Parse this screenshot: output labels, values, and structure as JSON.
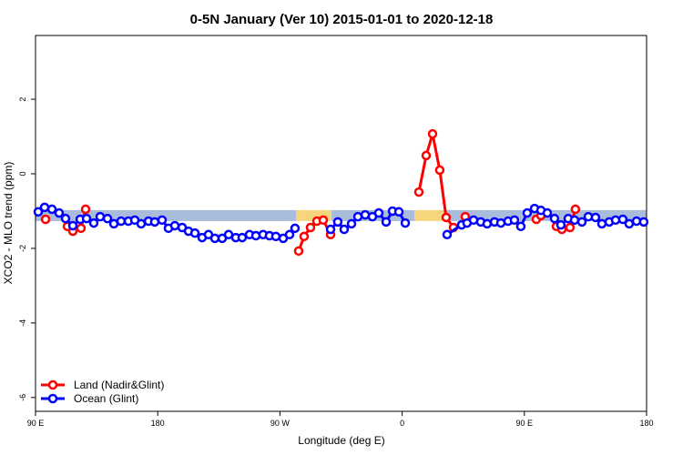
{
  "chart_data": {
    "type": "line",
    "title": "0-5N January (Ver 10)   2015-01-01 to 2020-12-18",
    "xlabel": "Longitude (deg E)",
    "ylabel": "XCO2 - MLO trend (ppm)",
    "xlim": [
      90,
      540
    ],
    "ylim": [
      -6.37,
      3.71
    ],
    "xticks": [
      {
        "value": 90,
        "label": "90 E"
      },
      180,
      {
        "value": 270,
        "label": "90 W"
      },
      {
        "value": 360,
        "label": "0"
      },
      {
        "value": 450,
        "label": "90 E"
      },
      {
        "value": 540,
        "label": "180"
      }
    ],
    "yticks": [
      2,
      0,
      -2,
      -4,
      -6
    ],
    "legend": "bottom-left",
    "band": {
      "value": -1.12,
      "segments": [
        {
          "from": 90,
          "to": 282,
          "color": "#a9bcdb"
        },
        {
          "from": 282,
          "to": 308,
          "color": "#f7d57c"
        },
        {
          "from": 308,
          "to": 369,
          "color": "#a9bcdb"
        },
        {
          "from": 369,
          "to": 392,
          "color": "#f7d57c"
        },
        {
          "from": 392,
          "to": 540,
          "color": "#a9bcdb"
        }
      ]
    },
    "series": [
      {
        "name": "Land (Nadir&Glint)",
        "color": "#ff0000",
        "x": [
          97.4,
          null,
          113.5,
          117.5,
          123.5,
          126.9,
          null,
          283.8,
          287.8,
          292.5,
          297.2,
          301.9,
          307.3,
          null,
          372.3,
          377.7,
          382.4,
          387.7,
          392.4,
          397.8,
          null,
          406.5,
          null,
          458.8,
          462.2,
          null,
          473.6,
          477.6,
          483.6,
          487.6
        ],
        "values": [
          -1.22,
          null,
          -1.41,
          -1.54,
          -1.46,
          -0.95,
          null,
          -2.07,
          -1.68,
          -1.44,
          -1.27,
          -1.24,
          -1.63,
          null,
          -0.49,
          0.49,
          1.07,
          0.1,
          -1.17,
          -1.44,
          null,
          -1.15,
          null,
          -1.22,
          -1.12,
          null,
          -1.41,
          -1.49,
          -1.44,
          -0.95
        ]
      },
      {
        "name": "Ocean (Glint)",
        "color": "#0000ff",
        "x": [
          92.0,
          96.7,
          102.1,
          107.4,
          112.1,
          117.5,
          122.9,
          127.6,
          132.9,
          137.6,
          143.0,
          147.7,
          153.0,
          158.4,
          163.1,
          167.8,
          173.2,
          177.8,
          183.2,
          187.9,
          192.6,
          198.0,
          202.7,
          207.4,
          212.7,
          217.4,
          222.1,
          227.5,
          232.2,
          237.5,
          242.2,
          247.6,
          252.3,
          257.6,
          262.3,
          267.0,
          272.4,
          277.1,
          281.1,
          null,
          307.3,
          312.6,
          317.3,
          322.7,
          327.4,
          332.8,
          338.1,
          342.8,
          348.2,
          352.9,
          357.6,
          362.3,
          null,
          393.1,
          403.8,
          407.8,
          412.6,
          417.9,
          422.6,
          428.0,
          432.7,
          438.0,
          442.7,
          447.4,
          452.1,
          457.5,
          462.2,
          466.9,
          472.2,
          476.9,
          482.3,
          487.0,
          492.4,
          497.1,
          502.4,
          507.1,
          512.5,
          517.2,
          522.5,
          527.2,
          532.6,
          537.9
        ],
        "values": [
          -1.02,
          -0.9,
          -0.95,
          -1.05,
          -1.2,
          -1.39,
          -1.22,
          -1.2,
          -1.32,
          -1.15,
          -1.2,
          -1.34,
          -1.27,
          -1.27,
          -1.24,
          -1.34,
          -1.27,
          -1.29,
          -1.24,
          -1.46,
          -1.39,
          -1.44,
          -1.54,
          -1.59,
          -1.71,
          -1.63,
          -1.73,
          -1.73,
          -1.63,
          -1.71,
          -1.71,
          -1.63,
          -1.66,
          -1.63,
          -1.66,
          -1.68,
          -1.73,
          -1.63,
          -1.46,
          null,
          -1.49,
          -1.29,
          -1.49,
          -1.34,
          -1.15,
          -1.1,
          -1.15,
          -1.05,
          -1.29,
          -1.0,
          -1.02,
          -1.32,
          null,
          -1.63,
          -1.37,
          -1.32,
          -1.24,
          -1.29,
          -1.34,
          -1.29,
          -1.32,
          -1.27,
          -1.24,
          -1.41,
          -1.05,
          -0.93,
          -0.98,
          -1.05,
          -1.2,
          -1.37,
          -1.2,
          -1.24,
          -1.29,
          -1.15,
          -1.17,
          -1.34,
          -1.29,
          -1.24,
          -1.22,
          -1.34,
          -1.27,
          -1.29
        ]
      }
    ]
  }
}
